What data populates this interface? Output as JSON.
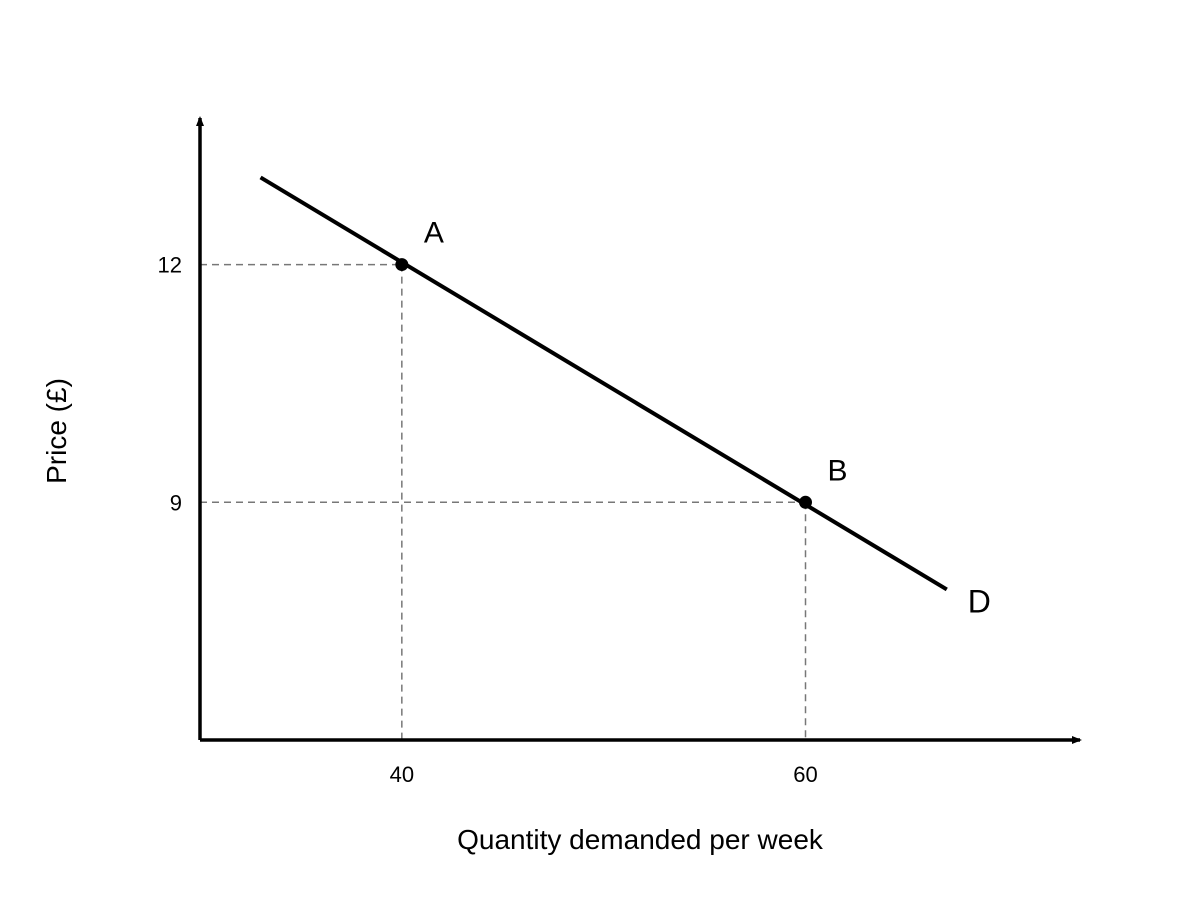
{
  "chart_data": {
    "type": "line",
    "xlabel": "Quantity demanded per week",
    "ylabel": "Price (£)",
    "xlim": [
      30,
      73.6
    ],
    "ylim": [
      6,
      13.85
    ],
    "x_ticks": [
      {
        "value": 40,
        "label": "40"
      },
      {
        "value": 60,
        "label": "60"
      }
    ],
    "y_ticks": [
      {
        "value": 9,
        "label": "9"
      },
      {
        "value": 12,
        "label": "12"
      }
    ],
    "grid": false,
    "series": [
      {
        "name": "D",
        "x": [
          33,
          67
        ],
        "y": [
          13.1,
          7.9
        ],
        "color": "#000000"
      }
    ],
    "points": [
      {
        "label": "A",
        "x": 40,
        "y": 12
      },
      {
        "label": "B",
        "x": 60,
        "y": 9
      }
    ],
    "guide_color": "#777777"
  }
}
